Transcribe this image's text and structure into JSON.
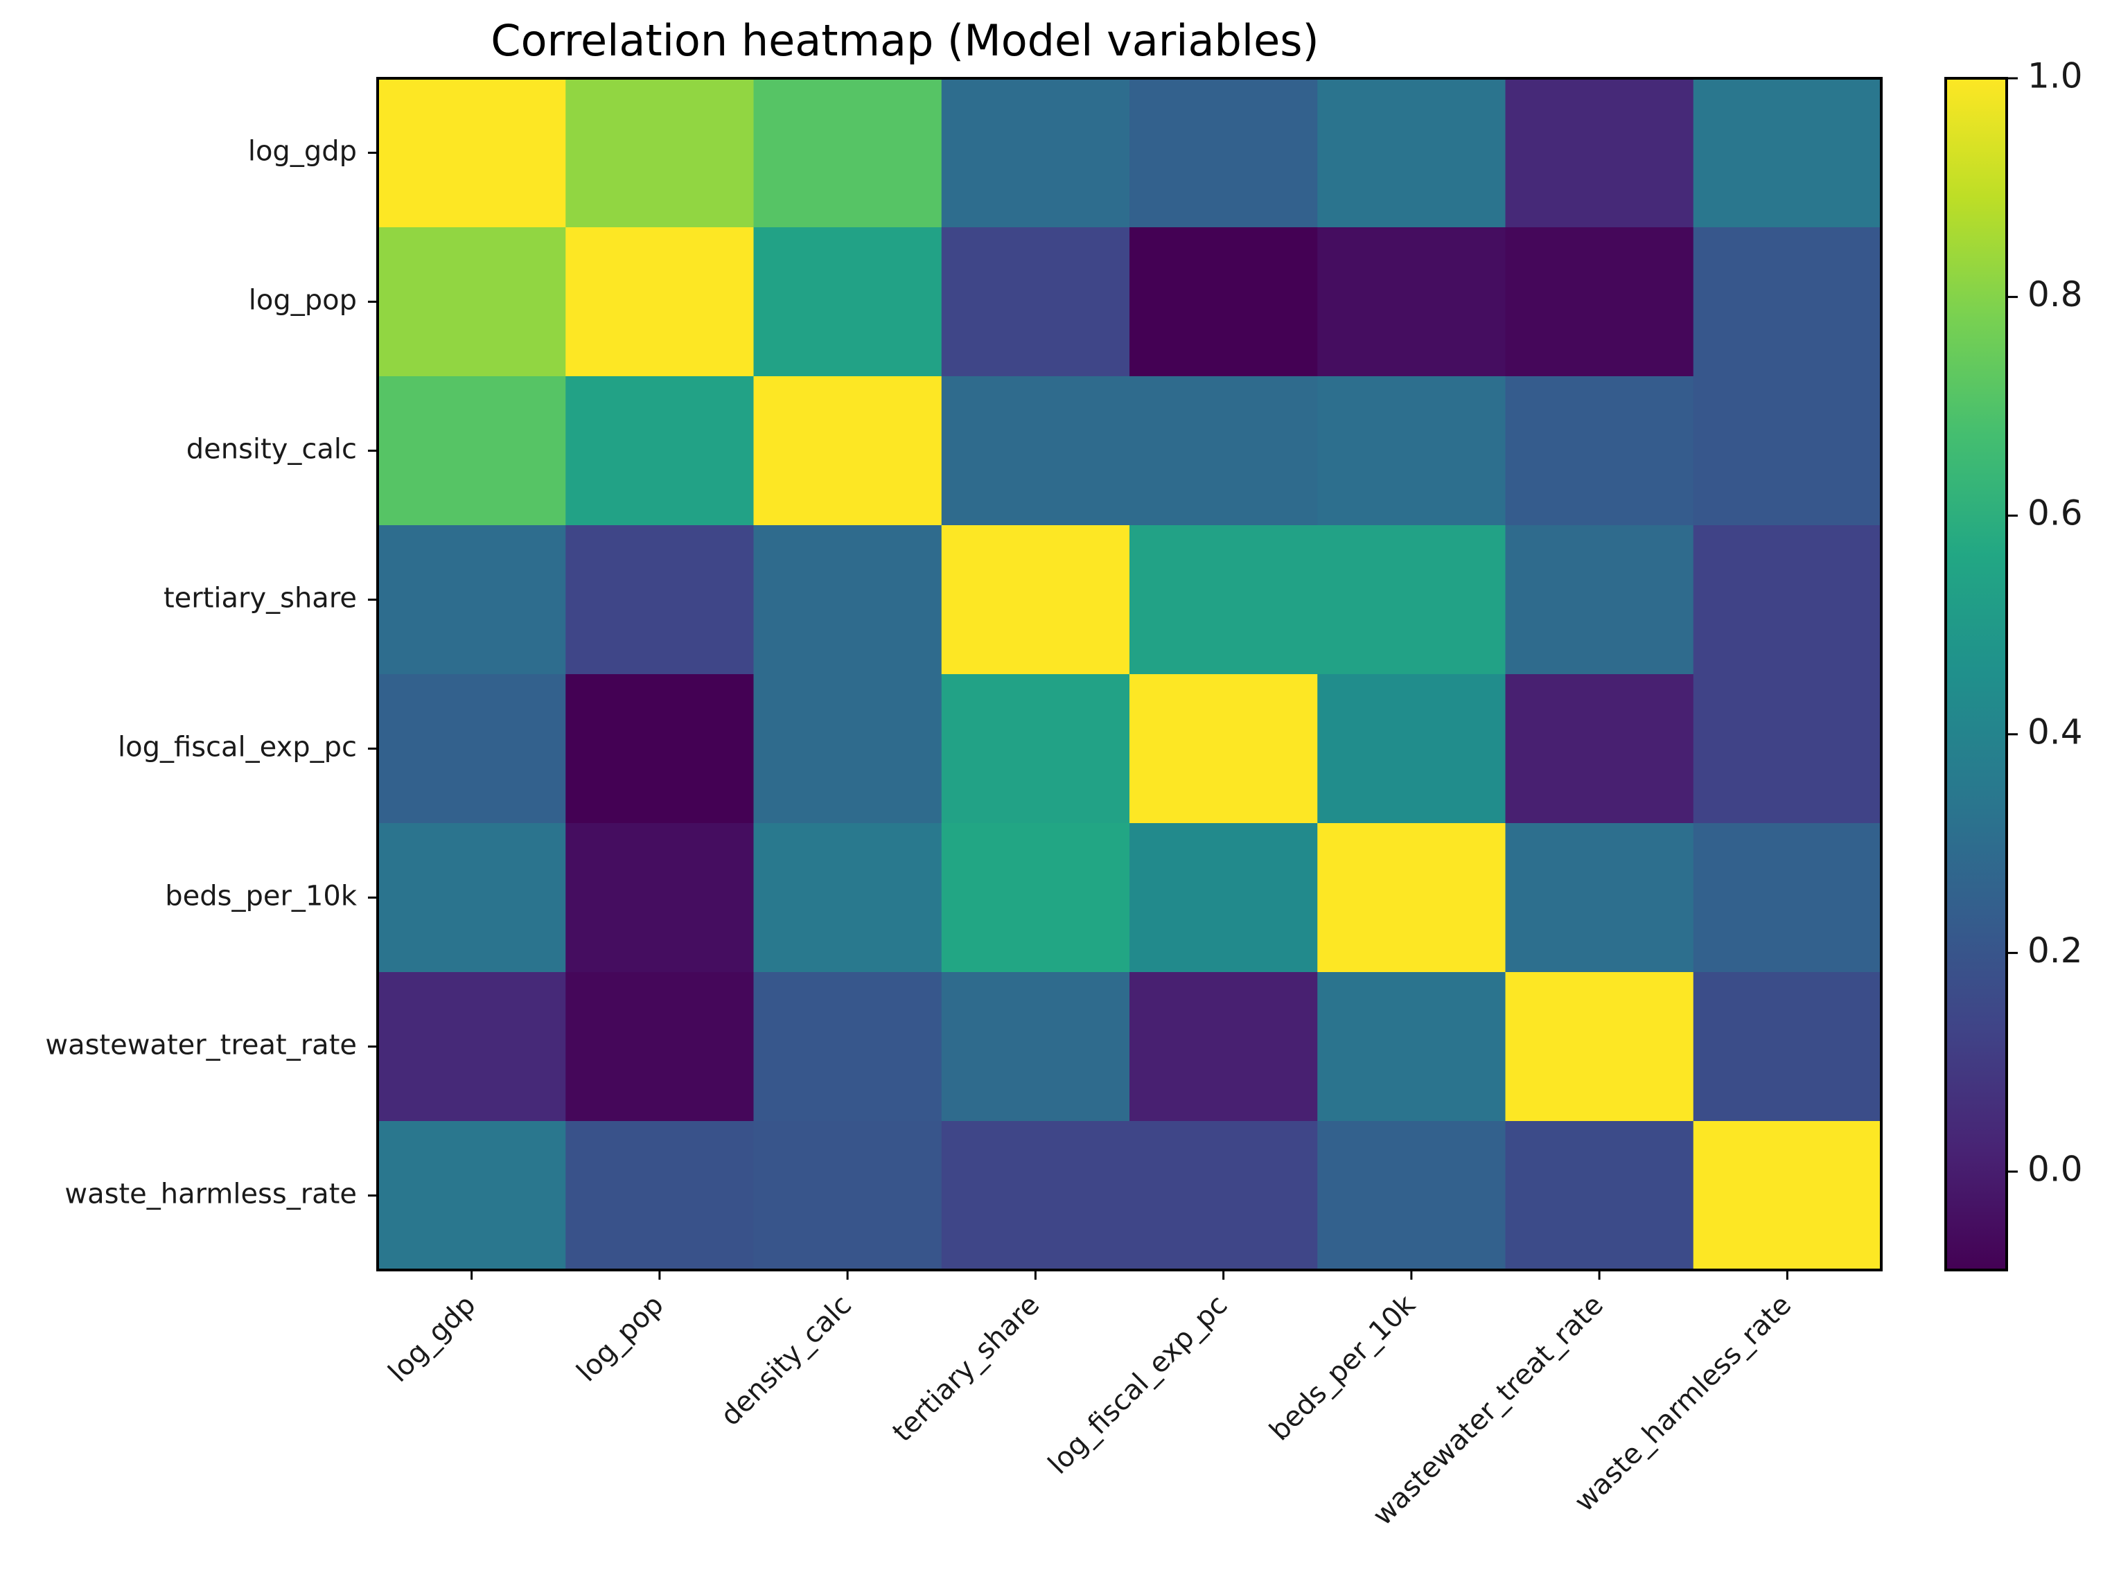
{
  "chart_data": {
    "type": "heatmap",
    "title": "Correlation heatmap (Model variables)",
    "xlabel": "",
    "ylabel": "",
    "variables": [
      "log_gdp",
      "log_pop",
      "density_calc",
      "tertiary_share",
      "log_fiscal_exp_pc",
      "beds_per_10k",
      "wastewater_treat_rate",
      "waste_harmless_rate"
    ],
    "matrix": [
      [
        1.0,
        0.82,
        0.71,
        0.3,
        0.25,
        0.33,
        0.04,
        0.34
      ],
      [
        0.82,
        1.0,
        0.54,
        0.14,
        -0.09,
        -0.05,
        -0.07,
        0.21
      ],
      [
        0.71,
        0.54,
        1.0,
        0.29,
        0.29,
        0.31,
        0.23,
        0.21
      ],
      [
        0.3,
        0.14,
        0.29,
        1.0,
        0.54,
        0.54,
        0.29,
        0.13
      ],
      [
        0.25,
        -0.09,
        0.29,
        0.54,
        1.0,
        0.44,
        0.01,
        0.13
      ],
      [
        0.33,
        -0.05,
        0.35,
        0.56,
        0.43,
        1.0,
        0.31,
        0.25
      ],
      [
        0.04,
        -0.07,
        0.21,
        0.29,
        0.01,
        0.33,
        1.0,
        0.17
      ],
      [
        0.34,
        0.19,
        0.2,
        0.14,
        0.14,
        0.25,
        0.16,
        1.0
      ]
    ],
    "colormap": "viridis",
    "vmin": -0.09,
    "vmax": 1.0,
    "colorbar_ticks": [
      0.0,
      0.2,
      0.4,
      0.6,
      0.8,
      1.0
    ],
    "colorbar_tick_labels": [
      "0.0",
      "0.2",
      "0.4",
      "0.6",
      "0.8",
      "1.0"
    ],
    "grid": false,
    "legend_placement": "right"
  }
}
